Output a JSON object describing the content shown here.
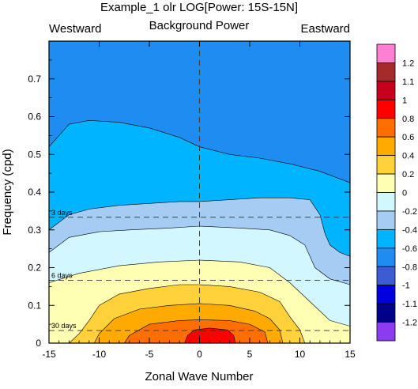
{
  "chart_data": {
    "type": "heatmap",
    "title": "Example_1 olr LOG[Power: 15S-15N]",
    "subtitle": "Background Power",
    "corner_left": "Westward",
    "corner_right": "Eastward",
    "xlabel": "Zonal Wave Number",
    "ylabel": "Frequency (cpd)",
    "xlim": [
      -15,
      15
    ],
    "ylim": [
      0,
      0.8
    ],
    "x_ticks": [
      -15,
      -10,
      -5,
      0,
      5,
      10,
      15
    ],
    "x_tick_labels": [
      "-15",
      "-10",
      "-5",
      "0",
      "5",
      "10",
      "15"
    ],
    "y_ticks": [
      0,
      0.1,
      0.2,
      0.3,
      0.4,
      0.5,
      0.6,
      0.7
    ],
    "y_tick_labels": [
      "0",
      "0.1",
      "0.2",
      "0.3",
      "0.4",
      "0.5",
      "0.6",
      "0.7"
    ],
    "reference_lines": [
      {
        "label": "3 days",
        "frequency": 0.3333
      },
      {
        "label": "6 days",
        "frequency": 0.1667
      },
      {
        "label": "30 days",
        "frequency": 0.0333
      }
    ],
    "center_line_x": 0,
    "colorbar": {
      "levels": [
        "1.2",
        "1.1",
        "1",
        "0.8",
        "0.6",
        "0.4",
        "0.2",
        "0",
        "-0.2",
        "-0.4",
        "-0.6",
        "-0.8",
        "-1",
        "-1.1",
        "-1.2"
      ],
      "colors": [
        "#ff7fd2",
        "#a52a2a",
        "#c8001e",
        "#ff0000",
        "#ff6e00",
        "#ffaa00",
        "#ffd23c",
        "#ffffb4",
        "#d2f7ff",
        "#a5ccf2",
        "#00b4ff",
        "#1e8cf0",
        "#3c5cd2",
        "#0000dc",
        "#00008c",
        "#8c3cf0"
      ]
    },
    "contours": [
      {
        "level": "-0.6",
        "color": "#1e8cf0",
        "region": "full"
      },
      {
        "level": "-0.4",
        "color": "#00b4ff",
        "points": [
          [
            -15,
            0
          ],
          [
            -15,
            0.52
          ],
          [
            -14,
            0.55
          ],
          [
            -13,
            0.58
          ],
          [
            -11,
            0.59
          ],
          [
            -8,
            0.585
          ],
          [
            -5,
            0.57
          ],
          [
            -2,
            0.545
          ],
          [
            0,
            0.52
          ],
          [
            3,
            0.5
          ],
          [
            6,
            0.49
          ],
          [
            9,
            0.475
          ],
          [
            12,
            0.455
          ],
          [
            15,
            0.425
          ],
          [
            15,
            0
          ]
        ]
      },
      {
        "level": "-0.2",
        "color": "#a5ccf2",
        "points": [
          [
            -15,
            0
          ],
          [
            -15,
            0.3
          ],
          [
            -13,
            0.34
          ],
          [
            -11,
            0.355
          ],
          [
            -8,
            0.365
          ],
          [
            -5,
            0.37
          ],
          [
            -2,
            0.375
          ],
          [
            0,
            0.375
          ],
          [
            3,
            0.38
          ],
          [
            6,
            0.385
          ],
          [
            9,
            0.385
          ],
          [
            11,
            0.38
          ],
          [
            12,
            0.34
          ],
          [
            12.5,
            0.29
          ],
          [
            13,
            0.26
          ],
          [
            14,
            0.24
          ],
          [
            15,
            0.23
          ],
          [
            15,
            0
          ]
        ]
      },
      {
        "level": "0",
        "color": "#d2f7ff",
        "points": [
          [
            -15,
            0
          ],
          [
            -15,
            0.24
          ],
          [
            -13,
            0.28
          ],
          [
            -10,
            0.295
          ],
          [
            -7,
            0.3
          ],
          [
            -3,
            0.305
          ],
          [
            0,
            0.31
          ],
          [
            4,
            0.305
          ],
          [
            7,
            0.3
          ],
          [
            9,
            0.285
          ],
          [
            10.5,
            0.26
          ],
          [
            11.5,
            0.2
          ],
          [
            13,
            0.17
          ],
          [
            15,
            0.155
          ],
          [
            15,
            0
          ]
        ]
      },
      {
        "level": "0.2",
        "color": "#ffffb4",
        "points": [
          [
            -15,
            0
          ],
          [
            -15,
            0.16
          ],
          [
            -12,
            0.185
          ],
          [
            -8,
            0.205
          ],
          [
            -4,
            0.215
          ],
          [
            0,
            0.22
          ],
          [
            4,
            0.215
          ],
          [
            7,
            0.2
          ],
          [
            9,
            0.16
          ],
          [
            11,
            0.11
          ],
          [
            13,
            0.06
          ],
          [
            15,
            0.045
          ],
          [
            15,
            0
          ]
        ]
      },
      {
        "level": "0.4",
        "color": "#ffd23c",
        "points": [
          [
            -13,
            0
          ],
          [
            -12,
            0.025
          ],
          [
            -11,
            0.06
          ],
          [
            -10,
            0.1
          ],
          [
            -8,
            0.13
          ],
          [
            -5,
            0.145
          ],
          [
            -2,
            0.155
          ],
          [
            0,
            0.155
          ],
          [
            3,
            0.15
          ],
          [
            6,
            0.135
          ],
          [
            8,
            0.11
          ],
          [
            9,
            0.07
          ],
          [
            10,
            0.035
          ],
          [
            10.5,
            0
          ]
        ]
      },
      {
        "level": "0.6",
        "color": "#ffaa00",
        "points": [
          [
            -10.5,
            0
          ],
          [
            -10,
            0.025
          ],
          [
            -8.5,
            0.065
          ],
          [
            -6,
            0.09
          ],
          [
            -3,
            0.1
          ],
          [
            0,
            0.105
          ],
          [
            3,
            0.1
          ],
          [
            5.5,
            0.085
          ],
          [
            7,
            0.065
          ],
          [
            8,
            0.035
          ],
          [
            8.3,
            0
          ]
        ]
      },
      {
        "level": "0.8",
        "color": "#ff6e00",
        "points": [
          [
            -7.5,
            0
          ],
          [
            -7,
            0.02
          ],
          [
            -5,
            0.05
          ],
          [
            -2,
            0.06
          ],
          [
            0,
            0.062
          ],
          [
            3,
            0.06
          ],
          [
            5,
            0.05
          ],
          [
            6.5,
            0.03
          ],
          [
            6.8,
            0
          ]
        ]
      },
      {
        "level": "1",
        "color": "#ff0000",
        "points": [
          [
            -1.5,
            0
          ],
          [
            -1.2,
            0.02
          ],
          [
            -0.5,
            0.035
          ],
          [
            1,
            0.04
          ],
          [
            2.8,
            0.035
          ],
          [
            3.4,
            0.02
          ],
          [
            3.6,
            0
          ]
        ]
      }
    ]
  }
}
